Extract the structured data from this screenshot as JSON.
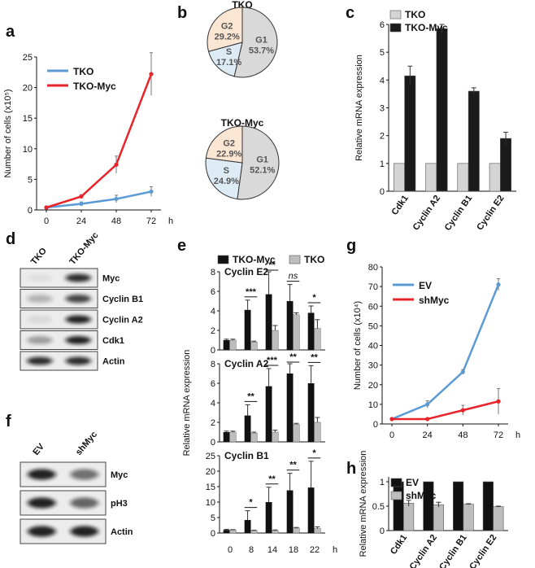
{
  "figure": {
    "panel_letters": [
      "a",
      "b",
      "c",
      "d",
      "e",
      "f",
      "g",
      "h"
    ]
  },
  "chart_data": [
    {
      "panel": "a",
      "type": "line",
      "ylabel": "Number of cells (x10⁵)",
      "x": [
        0,
        24,
        48,
        72
      ],
      "xunit": "h",
      "ylim": [
        0,
        25
      ],
      "yticks": [
        0,
        5,
        10,
        15,
        20,
        25
      ],
      "series": [
        {
          "name": "TKO",
          "color": "#5b9bd5",
          "values": [
            0.4,
            1.0,
            1.8,
            3.0
          ],
          "errors": [
            0.1,
            0.3,
            0.6,
            0.8
          ]
        },
        {
          "name": "TKO-Myc",
          "color": "#e8232a",
          "values": [
            0.4,
            2.2,
            7.4,
            22.2
          ],
          "errors": [
            0.1,
            0.3,
            1.4,
            3.5
          ]
        }
      ]
    },
    {
      "panel": "b",
      "type": "pie",
      "charts": [
        {
          "title": "TKO",
          "slices": [
            {
              "label": "G1",
              "value": 53.7,
              "text": "53.7%",
              "color": "#d9d9d9"
            },
            {
              "label": "S",
              "value": 17.1,
              "text": "17.1%",
              "color": "#ddebf5"
            },
            {
              "label": "G2",
              "value": 29.2,
              "text": "29.2%",
              "color": "#fbe5d3"
            }
          ]
        },
        {
          "title": "TKO-Myc",
          "slices": [
            {
              "label": "G1",
              "value": 52.1,
              "text": "52.1%",
              "color": "#d9d9d9"
            },
            {
              "label": "S",
              "value": 24.9,
              "text": "24.9%",
              "color": "#ddebf5"
            },
            {
              "label": "G2",
              "value": 22.9,
              "text": "22.9%",
              "color": "#fbe5d3"
            }
          ]
        }
      ]
    },
    {
      "panel": "c",
      "type": "bar",
      "ylabel": "Relative mRNA expression",
      "categories": [
        "Cdk1",
        "Cyclin A2",
        "Cyclin B1",
        "Cyclin E2"
      ],
      "ylim": [
        0,
        6
      ],
      "yticks": [
        0,
        1,
        2,
        3,
        4,
        5,
        6
      ],
      "series": [
        {
          "name": "TKO",
          "color": "#d4d4d4",
          "values": [
            1,
            1,
            1,
            1
          ],
          "errors": [
            0,
            0,
            0,
            0
          ]
        },
        {
          "name": "TKO-Myc",
          "color": "#1a1a1a",
          "values": [
            4.15,
            5.85,
            3.6,
            1.9
          ],
          "errors": [
            0.35,
            0.15,
            0.12,
            0.22
          ]
        }
      ]
    },
    {
      "panel": "e",
      "type": "bar",
      "ylabel": "Relative mRNA expression",
      "legend": [
        {
          "name": "TKO-Myc",
          "color": "#111"
        },
        {
          "name": "TKO",
          "color": "#bdbdbd"
        }
      ],
      "categories": [
        "0",
        "8",
        "14",
        "18",
        "22"
      ],
      "xunit": "h",
      "subplots": [
        {
          "title": "Cyclin E2",
          "ylim": [
            0,
            8
          ],
          "yticks": [
            0,
            2,
            4,
            6,
            8
          ],
          "myc": [
            1,
            4.1,
            5.7,
            5.0,
            3.8
          ],
          "myc_err": [
            0.1,
            1.0,
            2.3,
            1.7,
            0.7
          ],
          "tko": [
            1,
            0.8,
            2.0,
            3.6,
            2.2
          ],
          "tko_err": [
            0.1,
            0.1,
            0.5,
            0.2,
            0.9
          ],
          "sig": [
            "",
            "***",
            "**",
            "ns",
            "*"
          ]
        },
        {
          "title": "Cyclin A2",
          "ylim": [
            0,
            8
          ],
          "yticks": [
            0,
            2,
            4,
            6,
            8
          ],
          "myc": [
            1,
            2.7,
            5.7,
            7.0,
            6.0
          ],
          "myc_err": [
            0.1,
            1.1,
            1.8,
            1.3,
            1.8
          ],
          "tko": [
            1,
            0.9,
            1.0,
            1.8,
            2.0
          ],
          "tko_err": [
            0.1,
            0.1,
            0.2,
            0.1,
            0.5
          ],
          "sig": [
            "",
            "**",
            "***",
            "**",
            "**"
          ]
        },
        {
          "title": "Cyclin B1",
          "ylim": [
            0,
            25
          ],
          "yticks": [
            0,
            5,
            10,
            15,
            20,
            25
          ],
          "myc": [
            1,
            4.2,
            10.0,
            13.8,
            14.7
          ],
          "myc_err": [
            0.2,
            3.0,
            4.8,
            5.5,
            8.5
          ],
          "tko": [
            1,
            0.8,
            0.8,
            1.6,
            1.5
          ],
          "tko_err": [
            0.1,
            0.1,
            0.2,
            0.2,
            0.5
          ],
          "sig": [
            "",
            "*",
            "**",
            "**",
            "*"
          ]
        }
      ]
    },
    {
      "panel": "g",
      "type": "line",
      "ylabel": "Number of cells (x10⁴)",
      "x": [
        0,
        24,
        48,
        72
      ],
      "xunit": "h",
      "ylim": [
        0,
        80
      ],
      "yticks": [
        0,
        10,
        20,
        30,
        40,
        50,
        60,
        70,
        80
      ],
      "series": [
        {
          "name": "EV",
          "color": "#5b9bd5",
          "values": [
            2.5,
            10.0,
            26.5,
            71.0
          ],
          "errors": [
            0.5,
            1.8,
            1.2,
            3.0
          ]
        },
        {
          "name": "shMyc",
          "color": "#e8232a",
          "values": [
            2.5,
            2.5,
            7.0,
            11.5
          ],
          "errors": [
            0.5,
            0.5,
            2.5,
            6.5
          ]
        }
      ]
    },
    {
      "panel": "h",
      "type": "bar",
      "ylabel": "Relative mRNA expression",
      "categories": [
        "Cdk1",
        "Cyclin A2",
        "Cyclin B1",
        "Cyclin E2"
      ],
      "ylim": [
        0,
        1.1
      ],
      "yticks": [
        0,
        0.5,
        1
      ],
      "ytick_labels": [
        "0",
        "0.5",
        "1"
      ],
      "series": [
        {
          "name": "EV",
          "color": "#111",
          "values": [
            1,
            1,
            1,
            1
          ],
          "errors": [
            0,
            0,
            0,
            0
          ]
        },
        {
          "name": "shMyc",
          "color": "#bdbdbd",
          "values": [
            0.56,
            0.53,
            0.54,
            0.49
          ],
          "errors": [
            0.06,
            0.05,
            0.01,
            0.01
          ]
        }
      ]
    }
  ],
  "blots": [
    {
      "panel": "d",
      "lanes": [
        "TKO",
        "TKO-Myc"
      ],
      "bands": [
        {
          "label": "Myc",
          "intensity": [
            0.05,
            0.85
          ]
        },
        {
          "label": "Cyclin B1",
          "intensity": [
            0.25,
            0.75
          ]
        },
        {
          "label": "Cyclin A2",
          "intensity": [
            0.08,
            0.9
          ]
        },
        {
          "label": "Cdk1",
          "intensity": [
            0.35,
            0.9
          ]
        },
        {
          "label": "Actin",
          "intensity": [
            0.85,
            0.85
          ]
        }
      ]
    },
    {
      "panel": "f",
      "lanes": [
        "EV",
        "shMyc"
      ],
      "bands": [
        {
          "label": "Myc",
          "intensity": [
            0.9,
            0.55
          ]
        },
        {
          "label": "pH3",
          "intensity": [
            0.9,
            0.6
          ]
        },
        {
          "label": "Actin",
          "intensity": [
            0.9,
            0.9
          ]
        }
      ]
    }
  ]
}
